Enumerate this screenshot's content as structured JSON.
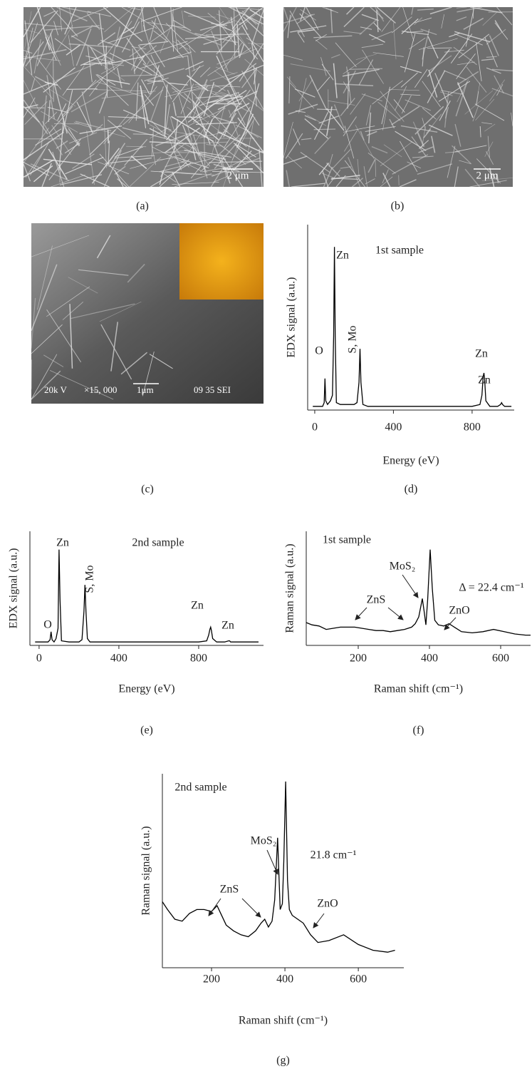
{
  "images": [
    {
      "label": "(a)",
      "scale_bar": "2 μm"
    },
    {
      "label": "(b)",
      "scale_bar": "2 μm"
    },
    {
      "label": "(c)",
      "info": [
        "20k V",
        "×15, 000",
        "1μm",
        "09 35 SEI"
      ]
    }
  ],
  "chart_data": [
    {
      "type": "line",
      "panel": "(d)",
      "x_label": "Energy (eV)",
      "y_label": "EDX signal (a.u.)",
      "annotations": [
        "Zn",
        "1st sample",
        "S, Mo",
        "O",
        "Zn",
        "Zn"
      ],
      "x": [
        -10,
        20,
        40,
        48,
        52,
        56,
        65,
        80,
        90,
        96,
        100,
        104,
        110,
        130,
        170,
        200,
        215,
        225,
        230,
        235,
        245,
        270,
        350,
        500,
        650,
        800,
        840,
        850,
        856,
        860,
        864,
        870,
        890,
        930,
        945,
        950,
        955,
        965,
        1000
      ],
      "series": [
        {
          "color": "#000000",
          "values": [
            2,
            2,
            2,
            4,
            17,
            5,
            3,
            5,
            8,
            40,
            88,
            40,
            4,
            3,
            3,
            3,
            4,
            15,
            33,
            15,
            3,
            2,
            2,
            2,
            2,
            2,
            3,
            8,
            18,
            20,
            16,
            5,
            2,
            2,
            3,
            4,
            3,
            2,
            2
          ]
        }
      ],
      "xlim": [
        -36,
        1014
      ],
      "ylim": [
        0,
        100
      ],
      "xticks": [
        0,
        400,
        800
      ]
    },
    {
      "type": "line",
      "panel": "(e)",
      "x_label": "Energy (eV)",
      "y_label": "EDX signal (a.u.)",
      "annotations": [
        "Zn",
        "2nd sample",
        "S, Mo",
        "O",
        "Zn",
        "Zn"
      ],
      "x": [
        -20,
        20,
        45,
        55,
        60,
        65,
        75,
        85,
        95,
        100,
        105,
        112,
        150,
        200,
        215,
        225,
        230,
        235,
        242,
        255,
        300,
        500,
        700,
        800,
        840,
        850,
        856,
        860,
        864,
        870,
        890,
        930,
        950,
        955,
        960,
        1000,
        1100
      ],
      "series": [
        {
          "color": "#000000",
          "values": [
            3,
            3,
            3,
            5,
            12,
            5,
            3,
            6,
            15,
            84,
            40,
            4,
            3,
            3,
            5,
            30,
            53,
            30,
            6,
            3,
            3,
            3,
            3,
            3,
            4,
            9,
            14,
            16,
            13,
            6,
            3,
            3,
            4,
            4,
            3,
            3,
            3
          ]
        }
      ],
      "xlim": [
        -46,
        1125
      ],
      "ylim": [
        0,
        100
      ],
      "xticks": [
        0,
        400,
        800
      ]
    },
    {
      "type": "line",
      "panel": "(f)",
      "x_label": "Raman shift (cm⁻¹)",
      "y_label": "Raman signal (a.u.)",
      "annotations": [
        "1st sample",
        "MoS₂",
        "Δ = 22.4 cm⁻¹",
        "ZnS",
        "ZnO"
      ],
      "x": [
        54,
        70,
        90,
        110,
        130,
        150,
        170,
        190,
        210,
        230,
        250,
        270,
        290,
        310,
        330,
        350,
        360,
        370,
        375,
        380,
        385,
        390,
        395,
        402,
        408,
        415,
        425,
        440,
        455,
        470,
        490,
        520,
        550,
        580,
        610,
        640,
        670,
        684
      ],
      "series": [
        {
          "color": "#000000",
          "values": [
            20,
            18,
            17,
            14,
            15,
            16,
            16,
            16,
            15,
            14,
            13,
            13,
            12,
            13,
            14,
            16,
            19,
            25,
            33,
            41,
            30,
            18,
            40,
            84,
            50,
            22,
            18,
            17,
            19,
            16,
            12,
            11,
            12,
            14,
            12,
            10,
            9,
            9
          ]
        }
      ],
      "xlim": [
        54,
        684
      ],
      "ylim": [
        0,
        100
      ],
      "xticks": [
        200,
        400,
        600
      ]
    },
    {
      "type": "line",
      "panel": "(g)",
      "x_label": "Raman shift (cm⁻¹)",
      "y_label": "Raman signal (a.u.)",
      "annotations": [
        "2nd sample",
        "MoS₂",
        "21.8 cm⁻¹",
        "ZnS",
        "ZnO"
      ],
      "x": [
        66,
        80,
        100,
        120,
        140,
        160,
        180,
        200,
        215,
        225,
        240,
        260,
        280,
        300,
        320,
        335,
        345,
        355,
        365,
        372,
        380,
        387,
        393,
        397,
        402,
        407,
        412,
        420,
        435,
        450,
        470,
        490,
        520,
        560,
        600,
        640,
        680,
        700
      ],
      "series": [
        {
          "color": "#000000",
          "values": [
            34,
            30,
            25,
            24,
            28,
            30,
            30,
            29,
            32,
            28,
            22,
            19,
            17,
            16,
            19,
            23,
            25,
            21,
            24,
            35,
            67,
            30,
            33,
            55,
            96,
            45,
            30,
            27,
            25,
            23,
            17,
            13,
            14,
            17,
            12,
            9,
            8,
            9
          ]
        }
      ],
      "xlim": [
        66,
        724
      ],
      "ylim": [
        0,
        100
      ],
      "xticks": [
        200,
        400,
        600
      ]
    }
  ]
}
